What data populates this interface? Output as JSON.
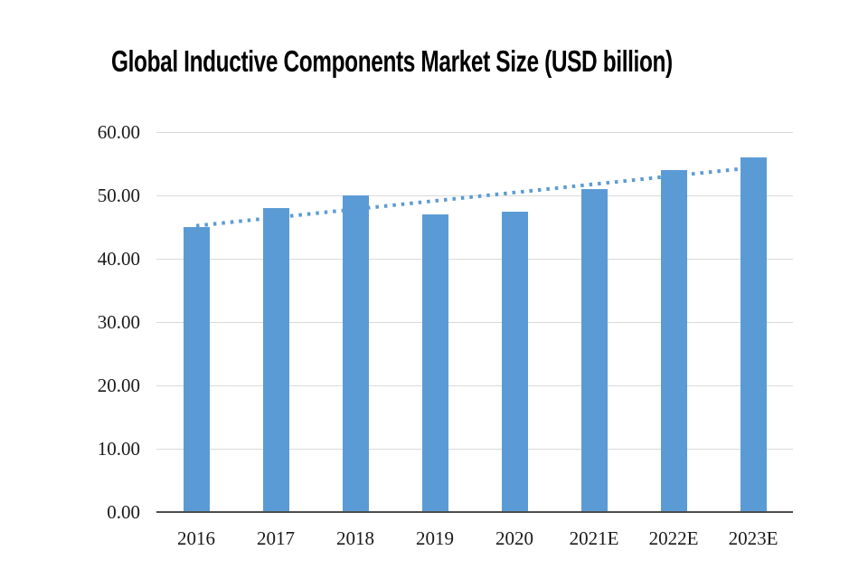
{
  "title": "Global Inductive Components Market Size (USD billion)",
  "chart_data": {
    "type": "bar",
    "title": "Global Inductive Components Market Size (USD billion)",
    "categories": [
      "2016",
      "2017",
      "2018",
      "2019",
      "2020",
      "2021E",
      "2022E",
      "2023E"
    ],
    "values": [
      45.0,
      48.0,
      50.0,
      47.0,
      47.5,
      51.0,
      54.0,
      56.0
    ],
    "xlabel": "",
    "ylabel": "",
    "ylim": [
      0,
      60
    ],
    "ytick_step": 10,
    "ytick_decimals": 2,
    "grid": true,
    "legend_position": "none",
    "trendline": {
      "type": "linear",
      "style": "dotted",
      "start_value": 45.2,
      "end_value": 54.4
    },
    "colors": {
      "bar": "#5b9bd5",
      "trendline": "#5b9bd5",
      "gridline": "#d9d9d9",
      "axis": "#4d4d4d",
      "text": "#1a1a1a",
      "background": "#ffffff"
    }
  }
}
